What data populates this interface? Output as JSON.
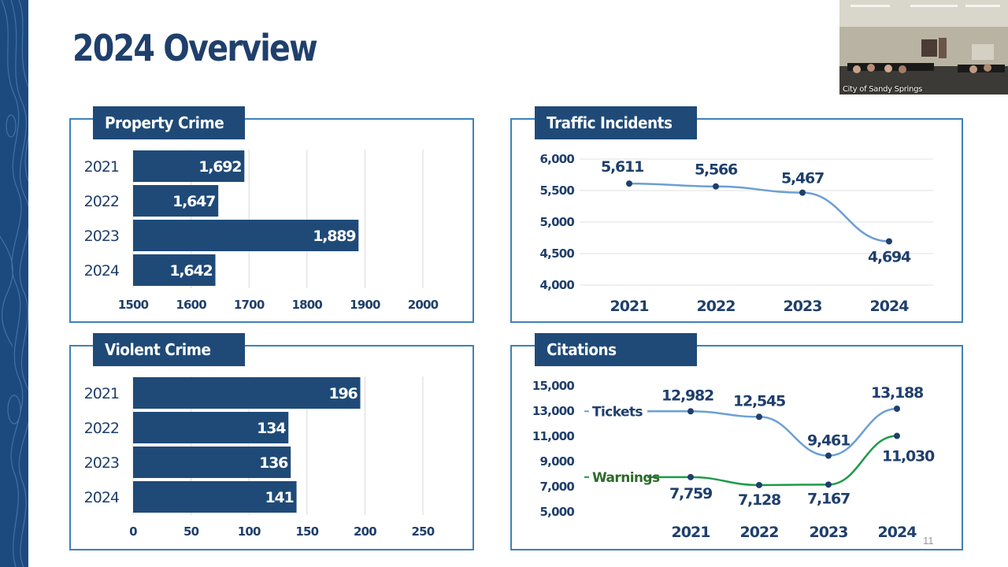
{
  "slide": {
    "title": "2024 Overview",
    "page_number": "11"
  },
  "video": {
    "caption": "City of Sandy Springs"
  },
  "panels": {
    "property_crime": {
      "title": "Property Crime"
    },
    "traffic": {
      "title": "Traffic Incidents"
    },
    "violent_crime": {
      "title": "Violent Crime"
    },
    "citations": {
      "title": "Citations"
    }
  },
  "colors": {
    "bar": "#1f4a78",
    "panel_border": "#3f80b8",
    "tickets_line": "#6b9fd4",
    "warnings_line": "#1f9a4a",
    "warnings_label": "#2f6b2a",
    "point": "#1f3f6c",
    "text": "#1f3f6c"
  },
  "chart_data": [
    {
      "id": "property_crime",
      "type": "bar",
      "orientation": "horizontal",
      "title": "Property Crime",
      "categories": [
        "2021",
        "2022",
        "2023",
        "2024"
      ],
      "values": [
        1692,
        1647,
        1889,
        1642
      ],
      "labels": [
        "1,692",
        "1,647",
        "1,889",
        "1,642"
      ],
      "xlim": [
        1500,
        2000
      ],
      "ticks": [
        1500,
        1600,
        1700,
        1800,
        1900,
        2000
      ],
      "grid": true
    },
    {
      "id": "traffic",
      "type": "line",
      "title": "Traffic Incidents",
      "categories": [
        "2021",
        "2022",
        "2023",
        "2024"
      ],
      "values": [
        5611,
        5566,
        5467,
        4694
      ],
      "labels": [
        "5,611",
        "5,566",
        "5,467",
        "4,694"
      ],
      "ylim": [
        4000,
        6000
      ],
      "ticks": [
        4000,
        4500,
        5000,
        5500,
        6000
      ],
      "tick_labels": [
        "4,000",
        "4,500",
        "5,000",
        "5,500",
        "6,000"
      ],
      "grid": true
    },
    {
      "id": "violent_crime",
      "type": "bar",
      "orientation": "horizontal",
      "title": "Violent Crime",
      "categories": [
        "2021",
        "2022",
        "2023",
        "2024"
      ],
      "values": [
        196,
        134,
        136,
        141
      ],
      "labels": [
        "196",
        "134",
        "136",
        "141"
      ],
      "xlim": [
        0,
        250
      ],
      "ticks": [
        0,
        50,
        100,
        150,
        200,
        250
      ],
      "grid": true
    },
    {
      "id": "citations",
      "type": "line",
      "title": "Citations",
      "categories": [
        "2021",
        "2022",
        "2023",
        "2024"
      ],
      "series": [
        {
          "name": "Tickets",
          "values": [
            12982,
            12545,
            9461,
            13188
          ],
          "labels": [
            "12,982",
            "12,545",
            "9,461",
            "13,188"
          ]
        },
        {
          "name": "Warnings",
          "values": [
            7759,
            7128,
            7167,
            11030
          ],
          "labels": [
            "7,759",
            "7,128",
            "7,167",
            "11,030"
          ]
        }
      ],
      "ylim": [
        5000,
        15000
      ],
      "ticks": [
        5000,
        7000,
        9000,
        11000,
        13000,
        15000
      ],
      "tick_labels": [
        "5,000",
        "7,000",
        "9,000",
        "11,000",
        "13,000",
        "15,000"
      ],
      "grid": false,
      "legend": "left, inline with lines"
    }
  ]
}
